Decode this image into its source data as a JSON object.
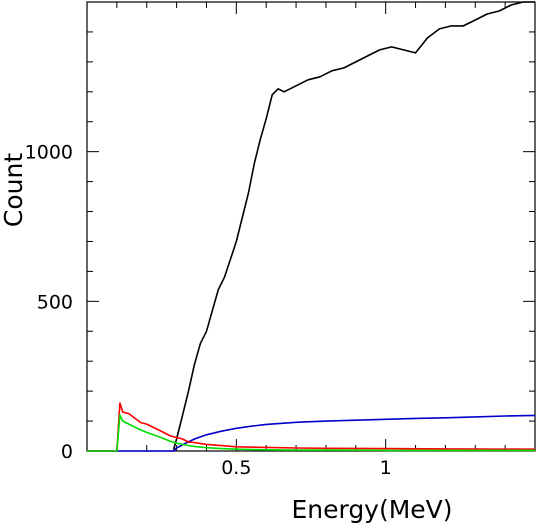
{
  "chart_data": {
    "type": "line",
    "title": "",
    "xlabel": "Energy(MeV)",
    "ylabel": "Count",
    "xlim": [
      0.0,
      1.5
    ],
    "ylim": [
      0,
      1500
    ],
    "grid": false,
    "legend": "none",
    "x_ticks": [
      {
        "value": 0.5,
        "label": "0.5"
      },
      {
        "value": 1.0,
        "label": "1"
      }
    ],
    "y_ticks": [
      {
        "value": 0,
        "label": "0"
      },
      {
        "value": 500,
        "label": "500"
      },
      {
        "value": 1000,
        "label": "1000"
      }
    ],
    "series": [
      {
        "color": "#000000",
        "x": [
          0.29,
          0.3,
          0.32,
          0.34,
          0.36,
          0.38,
          0.4,
          0.42,
          0.44,
          0.46,
          0.48,
          0.5,
          0.52,
          0.54,
          0.56,
          0.58,
          0.6,
          0.62,
          0.64,
          0.66,
          0.68,
          0.7,
          0.74,
          0.78,
          0.82,
          0.86,
          0.9,
          0.94,
          0.98,
          1.02,
          1.06,
          1.1,
          1.14,
          1.18,
          1.22,
          1.26,
          1.3,
          1.34,
          1.38,
          1.42,
          1.46,
          1.5
        ],
        "values": [
          5,
          40,
          120,
          200,
          290,
          360,
          400,
          470,
          540,
          580,
          640,
          700,
          780,
          860,
          960,
          1040,
          1110,
          1190,
          1210,
          1200,
          1210,
          1220,
          1240,
          1250,
          1270,
          1280,
          1300,
          1320,
          1340,
          1350,
          1340,
          1330,
          1380,
          1410,
          1420,
          1420,
          1440,
          1460,
          1470,
          1490,
          1500,
          1500
        ]
      },
      {
        "color": "#0000cc",
        "x": [
          0.0,
          0.29,
          0.3,
          0.33,
          0.36,
          0.4,
          0.45,
          0.5,
          0.55,
          0.6,
          0.7,
          0.8,
          0.9,
          1.0,
          1.1,
          1.2,
          1.3,
          1.4,
          1.5
        ],
        "values": [
          0,
          0,
          10,
          26,
          40,
          54,
          66,
          76,
          83,
          89,
          96,
          100,
          103,
          106,
          109,
          111,
          114,
          117,
          119
        ]
      },
      {
        "color": "#ff0000",
        "x": [
          0.0,
          0.1,
          0.11,
          0.12,
          0.14,
          0.16,
          0.18,
          0.2,
          0.22,
          0.24,
          0.26,
          0.28,
          0.3,
          0.32,
          0.34,
          0.36,
          0.4,
          0.45,
          0.5,
          0.6,
          0.7,
          0.8,
          1.0,
          1.2,
          1.5
        ],
        "values": [
          0,
          0,
          160,
          130,
          125,
          110,
          95,
          90,
          80,
          70,
          60,
          50,
          45,
          40,
          30,
          28,
          22,
          18,
          14,
          12,
          10,
          9,
          8,
          7,
          6
        ]
      },
      {
        "color": "#00dd00",
        "x": [
          0.0,
          0.1,
          0.11,
          0.12,
          0.14,
          0.16,
          0.18,
          0.2,
          0.22,
          0.24,
          0.26,
          0.28,
          0.3,
          0.33,
          0.36,
          0.4,
          0.45,
          0.5,
          0.6,
          0.7,
          0.8,
          1.0,
          1.2,
          1.5
        ],
        "values": [
          0,
          0,
          120,
          100,
          90,
          80,
          70,
          62,
          55,
          48,
          40,
          32,
          26,
          20,
          15,
          11,
          8,
          6,
          4,
          3,
          3,
          2,
          2,
          2
        ]
      }
    ]
  }
}
